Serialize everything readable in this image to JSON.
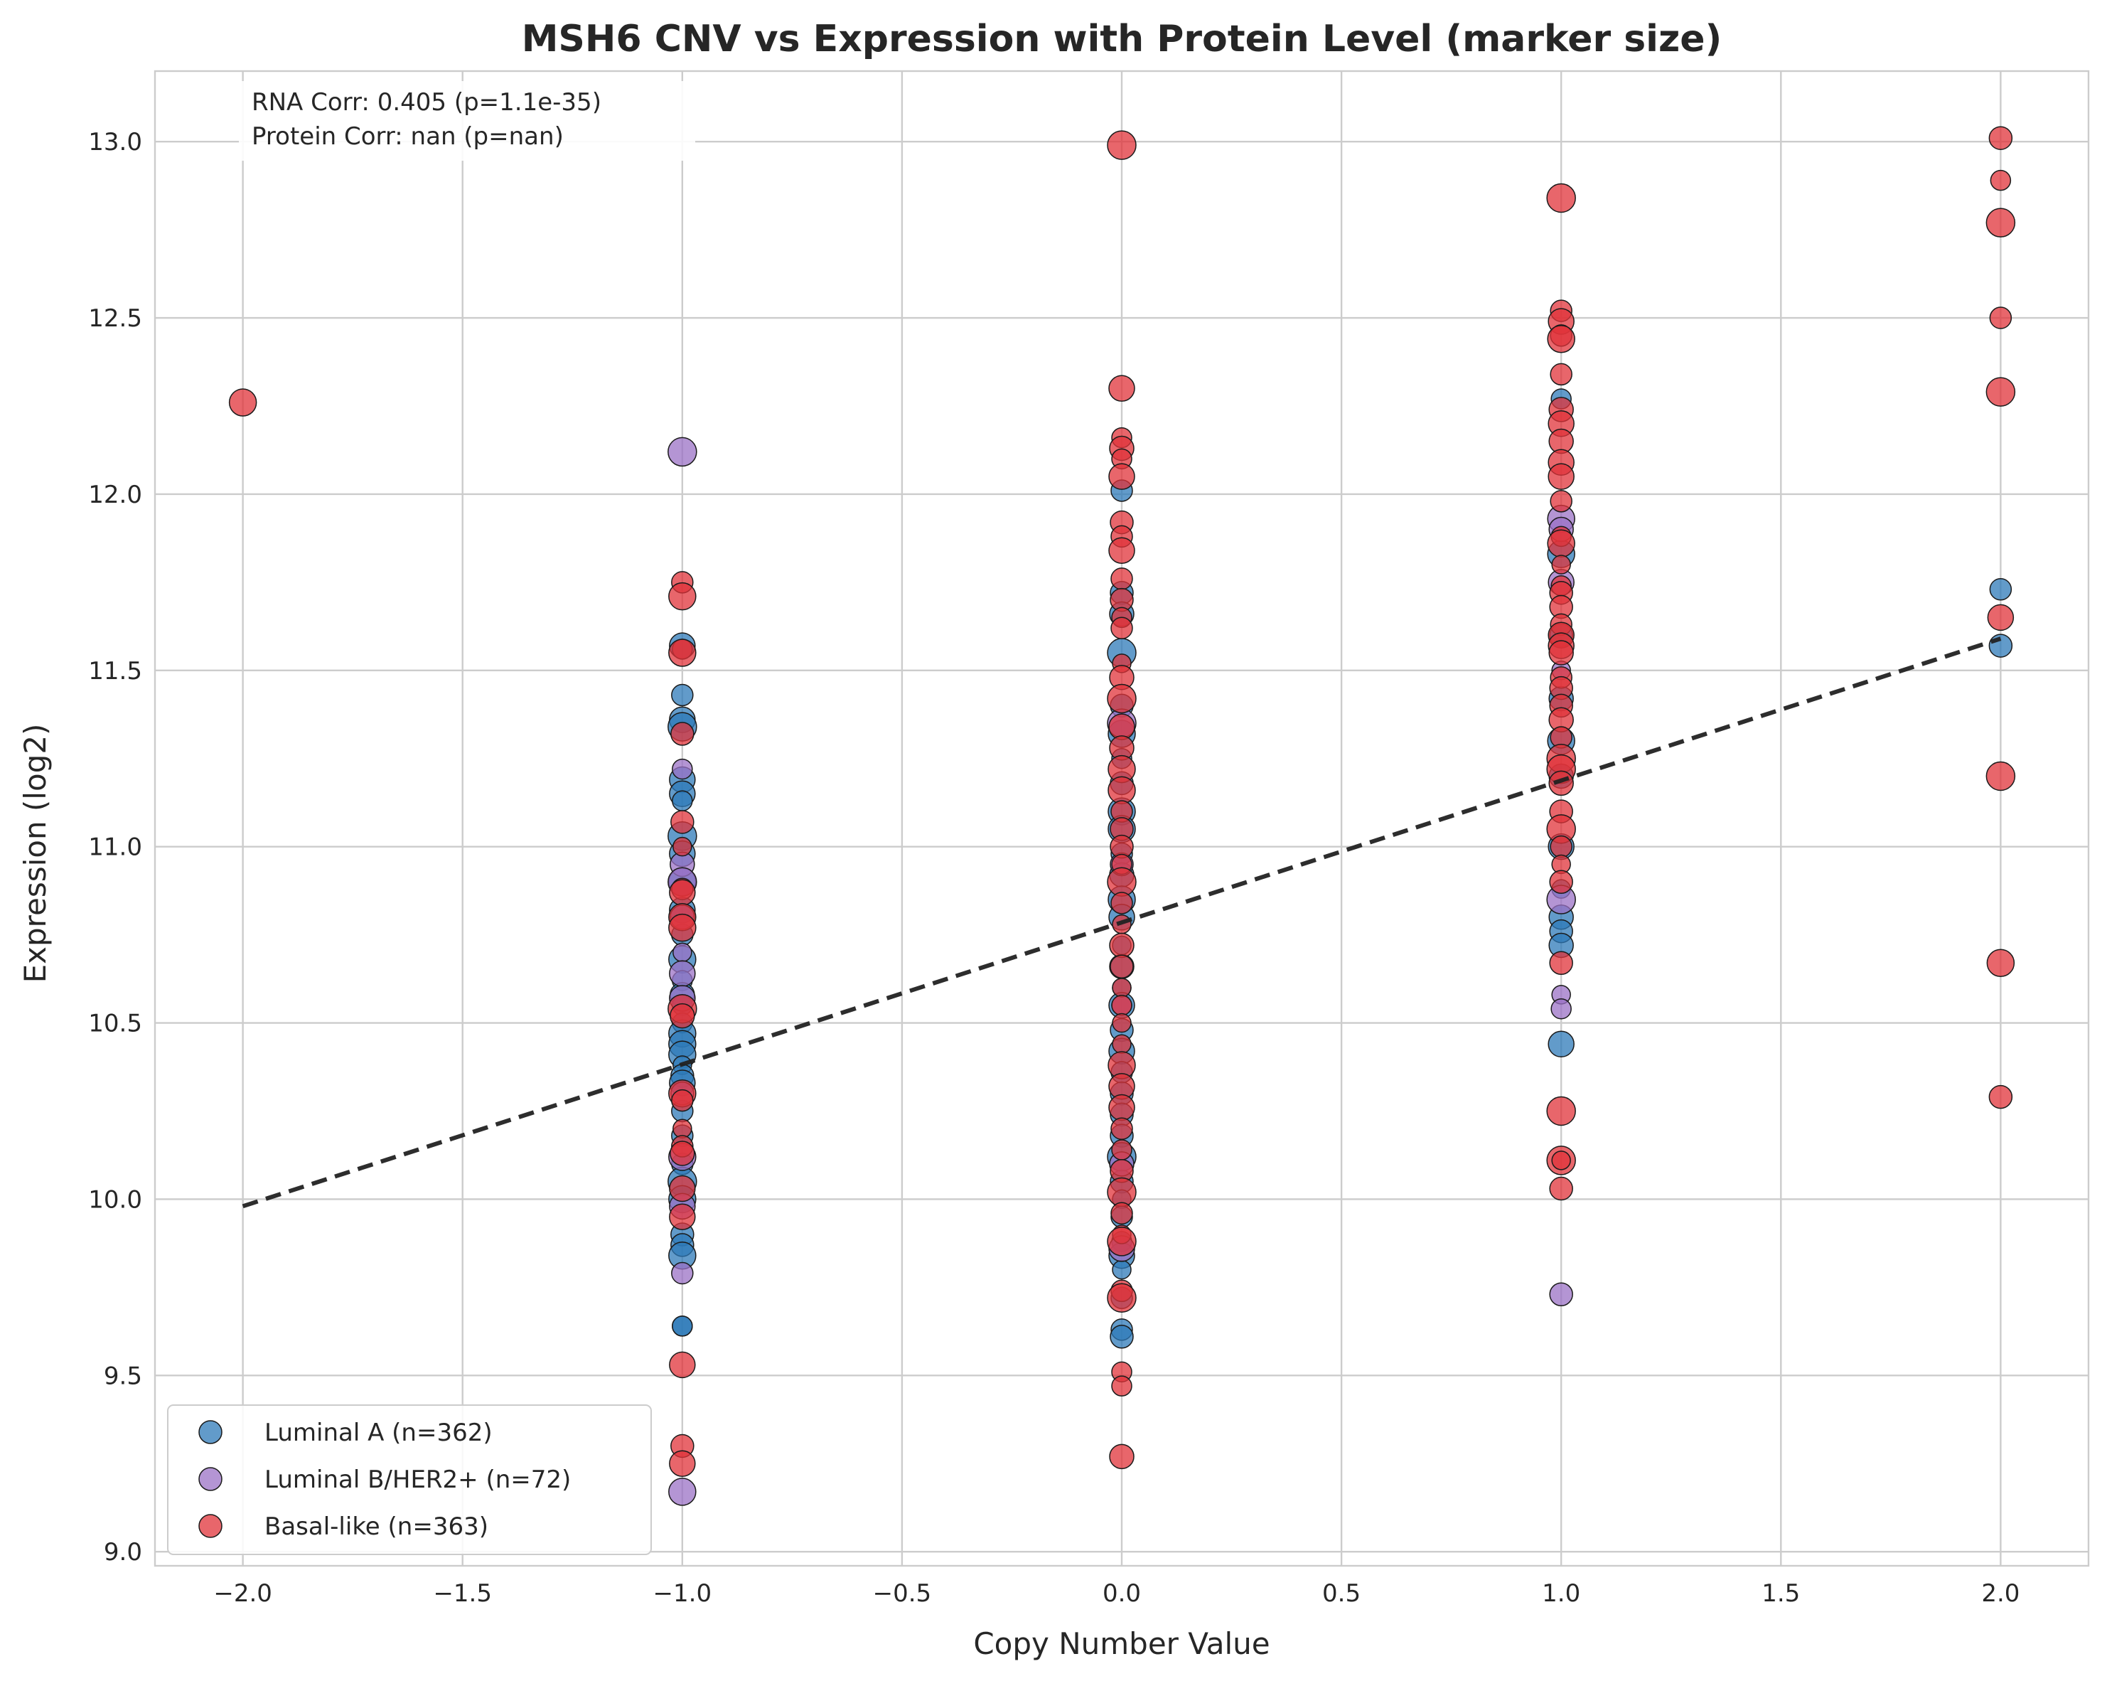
{
  "chart_data": {
    "type": "scatter",
    "title": "MSH6 CNV vs Expression with Protein Level (marker size)",
    "xlabel": "Copy Number Value",
    "ylabel": "Expression (log2)",
    "xlim": [
      -2.2,
      2.2
    ],
    "ylim": [
      8.96,
      13.2
    ],
    "xticks": [
      "−2.0",
      "−1.5",
      "−1.0",
      "−0.5",
      "0.0",
      "0.5",
      "1.0",
      "1.5",
      "2.0"
    ],
    "xtick_values": [
      -2.0,
      -1.5,
      -1.0,
      -0.5,
      0.0,
      0.5,
      1.0,
      1.5,
      2.0
    ],
    "yticks": [
      "9.0",
      "9.5",
      "10.0",
      "10.5",
      "11.0",
      "11.5",
      "12.0",
      "12.5",
      "13.0"
    ],
    "ytick_values": [
      9.0,
      9.5,
      10.0,
      10.5,
      11.0,
      11.5,
      12.0,
      12.5,
      13.0
    ],
    "grid": true,
    "legend_position": "lower-left",
    "annotation": [
      "RNA Corr: 0.405 (p=1.1e-35)",
      "Protein Corr: nan (p=nan)"
    ],
    "trend_line": {
      "x": [
        -2.0,
        2.0
      ],
      "y": [
        9.98,
        11.59
      ],
      "style": "dashed",
      "color": "#222222"
    },
    "series": [
      {
        "name": "Luminal A (n=362)",
        "color": "#2e7ab8",
        "points": [
          [
            -1.0,
            11.57
          ],
          [
            -1.0,
            11.43
          ],
          [
            -1.0,
            11.36
          ],
          [
            -1.0,
            11.34
          ],
          [
            -1.0,
            11.19
          ],
          [
            -1.0,
            11.15
          ],
          [
            -1.0,
            11.13
          ],
          [
            -1.0,
            11.03
          ],
          [
            -1.0,
            10.98
          ],
          [
            -1.0,
            10.9
          ],
          [
            -1.0,
            10.82
          ],
          [
            -1.0,
            10.75
          ],
          [
            -1.0,
            10.68
          ],
          [
            -1.0,
            10.62
          ],
          [
            -1.0,
            10.58
          ],
          [
            -1.0,
            10.55
          ],
          [
            -1.0,
            10.5
          ],
          [
            -1.0,
            10.47
          ],
          [
            -1.0,
            10.44
          ],
          [
            -1.0,
            10.41
          ],
          [
            -1.0,
            10.38
          ],
          [
            -1.0,
            10.35
          ],
          [
            -1.0,
            10.33
          ],
          [
            -1.0,
            10.25
          ],
          [
            -1.0,
            10.18
          ],
          [
            -1.0,
            10.1
          ],
          [
            -1.0,
            10.05
          ],
          [
            -1.0,
            10.0
          ],
          [
            -1.0,
            9.9
          ],
          [
            -1.0,
            9.87
          ],
          [
            -1.0,
            9.84
          ],
          [
            -1.0,
            9.64
          ],
          [
            -1.0,
            9.64
          ],
          [
            0.0,
            12.01
          ],
          [
            0.0,
            11.72
          ],
          [
            0.0,
            11.66
          ],
          [
            0.0,
            11.55
          ],
          [
            0.0,
            11.4
          ],
          [
            0.0,
            11.32
          ],
          [
            0.0,
            11.25
          ],
          [
            0.0,
            11.18
          ],
          [
            0.0,
            11.1
          ],
          [
            0.0,
            11.05
          ],
          [
            0.0,
            10.98
          ],
          [
            0.0,
            10.92
          ],
          [
            0.0,
            10.85
          ],
          [
            0.0,
            10.8
          ],
          [
            0.0,
            10.72
          ],
          [
            0.0,
            10.66
          ],
          [
            0.0,
            10.6
          ],
          [
            0.0,
            10.55
          ],
          [
            0.0,
            10.48
          ],
          [
            0.0,
            10.42
          ],
          [
            0.0,
            10.36
          ],
          [
            0.0,
            10.3
          ],
          [
            0.0,
            10.24
          ],
          [
            0.0,
            10.18
          ],
          [
            0.0,
            10.12
          ],
          [
            0.0,
            10.05
          ],
          [
            0.0,
            10.0
          ],
          [
            0.0,
            9.95
          ],
          [
            0.0,
            9.88
          ],
          [
            0.0,
            9.84
          ],
          [
            0.0,
            9.8
          ],
          [
            0.0,
            9.72
          ],
          [
            0.0,
            9.63
          ],
          [
            0.0,
            9.61
          ],
          [
            1.0,
            12.27
          ],
          [
            1.0,
            11.83
          ],
          [
            1.0,
            11.6
          ],
          [
            1.0,
            11.42
          ],
          [
            1.0,
            11.3
          ],
          [
            1.0,
            11.2
          ],
          [
            1.0,
            11.0
          ],
          [
            1.0,
            10.88
          ],
          [
            1.0,
            10.8
          ],
          [
            1.0,
            10.76
          ],
          [
            1.0,
            10.72
          ],
          [
            1.0,
            10.44
          ],
          [
            2.0,
            11.73
          ],
          [
            2.0,
            11.57
          ]
        ]
      },
      {
        "name": "Luminal B/HER2+ (n=72)",
        "color": "#9b72c6",
        "points": [
          [
            -1.0,
            12.12
          ],
          [
            -1.0,
            11.22
          ],
          [
            -1.0,
            10.95
          ],
          [
            -1.0,
            10.9
          ],
          [
            -1.0,
            10.8
          ],
          [
            -1.0,
            10.7
          ],
          [
            -1.0,
            10.64
          ],
          [
            -1.0,
            10.57
          ],
          [
            -1.0,
            10.3
          ],
          [
            -1.0,
            10.12
          ],
          [
            -1.0,
            9.98
          ],
          [
            -1.0,
            9.79
          ],
          [
            -1.0,
            9.17
          ],
          [
            0.0,
            11.35
          ],
          [
            0.0,
            10.95
          ],
          [
            0.0,
            10.55
          ],
          [
            0.0,
            10.1
          ],
          [
            0.0,
            9.86
          ],
          [
            1.0,
            11.93
          ],
          [
            1.0,
            11.9
          ],
          [
            1.0,
            11.75
          ],
          [
            1.0,
            11.5
          ],
          [
            1.0,
            10.85
          ],
          [
            1.0,
            10.58
          ],
          [
            1.0,
            10.54
          ],
          [
            1.0,
            9.73
          ]
        ]
      },
      {
        "name": "Basal-like (n=363)",
        "color": "#e0333a",
        "points": [
          [
            -2.0,
            12.26
          ],
          [
            -1.0,
            11.75
          ],
          [
            -1.0,
            11.71
          ],
          [
            -1.0,
            11.56
          ],
          [
            -1.0,
            11.55
          ],
          [
            -1.0,
            11.32
          ],
          [
            -1.0,
            11.07
          ],
          [
            -1.0,
            11.0
          ],
          [
            -1.0,
            10.88
          ],
          [
            -1.0,
            10.87
          ],
          [
            -1.0,
            10.8
          ],
          [
            -1.0,
            10.77
          ],
          [
            -1.0,
            10.54
          ],
          [
            -1.0,
            10.52
          ],
          [
            -1.0,
            10.3
          ],
          [
            -1.0,
            10.28
          ],
          [
            -1.0,
            10.2
          ],
          [
            -1.0,
            10.15
          ],
          [
            -1.0,
            10.13
          ],
          [
            -1.0,
            10.03
          ],
          [
            -1.0,
            9.95
          ],
          [
            -1.0,
            9.53
          ],
          [
            -1.0,
            9.3
          ],
          [
            -1.0,
            9.25
          ],
          [
            0.0,
            12.99
          ],
          [
            0.0,
            12.3
          ],
          [
            0.0,
            12.16
          ],
          [
            0.0,
            12.13
          ],
          [
            0.0,
            12.1
          ],
          [
            0.0,
            12.05
          ],
          [
            0.0,
            11.92
          ],
          [
            0.0,
            11.88
          ],
          [
            0.0,
            11.84
          ],
          [
            0.0,
            11.76
          ],
          [
            0.0,
            11.7
          ],
          [
            0.0,
            11.65
          ],
          [
            0.0,
            11.62
          ],
          [
            0.0,
            11.52
          ],
          [
            0.0,
            11.48
          ],
          [
            0.0,
            11.42
          ],
          [
            0.0,
            11.34
          ],
          [
            0.0,
            11.28
          ],
          [
            0.0,
            11.22
          ],
          [
            0.0,
            11.16
          ],
          [
            0.0,
            11.1
          ],
          [
            0.0,
            11.05
          ],
          [
            0.0,
            11.0
          ],
          [
            0.0,
            10.95
          ],
          [
            0.0,
            10.9
          ],
          [
            0.0,
            10.84
          ],
          [
            0.0,
            10.78
          ],
          [
            0.0,
            10.72
          ],
          [
            0.0,
            10.66
          ],
          [
            0.0,
            10.6
          ],
          [
            0.0,
            10.55
          ],
          [
            0.0,
            10.5
          ],
          [
            0.0,
            10.44
          ],
          [
            0.0,
            10.38
          ],
          [
            0.0,
            10.32
          ],
          [
            0.0,
            10.26
          ],
          [
            0.0,
            10.2
          ],
          [
            0.0,
            10.14
          ],
          [
            0.0,
            10.08
          ],
          [
            0.0,
            10.02
          ],
          [
            0.0,
            9.96
          ],
          [
            0.0,
            9.9
          ],
          [
            0.0,
            9.88
          ],
          [
            0.0,
            9.74
          ],
          [
            0.0,
            9.72
          ],
          [
            0.0,
            9.51
          ],
          [
            0.0,
            9.47
          ],
          [
            0.0,
            9.27
          ],
          [
            1.0,
            12.84
          ],
          [
            1.0,
            12.52
          ],
          [
            1.0,
            12.49
          ],
          [
            1.0,
            12.45
          ],
          [
            1.0,
            12.44
          ],
          [
            1.0,
            12.34
          ],
          [
            1.0,
            12.24
          ],
          [
            1.0,
            12.2
          ],
          [
            1.0,
            12.15
          ],
          [
            1.0,
            12.09
          ],
          [
            1.0,
            12.05
          ],
          [
            1.0,
            11.98
          ],
          [
            1.0,
            11.88
          ],
          [
            1.0,
            11.86
          ],
          [
            1.0,
            11.8
          ],
          [
            1.0,
            11.74
          ],
          [
            1.0,
            11.72
          ],
          [
            1.0,
            11.68
          ],
          [
            1.0,
            11.63
          ],
          [
            1.0,
            11.6
          ],
          [
            1.0,
            11.57
          ],
          [
            1.0,
            11.55
          ],
          [
            1.0,
            11.48
          ],
          [
            1.0,
            11.45
          ],
          [
            1.0,
            11.4
          ],
          [
            1.0,
            11.36
          ],
          [
            1.0,
            11.31
          ],
          [
            1.0,
            11.25
          ],
          [
            1.0,
            11.22
          ],
          [
            1.0,
            11.18
          ],
          [
            1.0,
            11.1
          ],
          [
            1.0,
            11.05
          ],
          [
            1.0,
            11.0
          ],
          [
            1.0,
            10.95
          ],
          [
            1.0,
            10.9
          ],
          [
            1.0,
            10.67
          ],
          [
            1.0,
            10.25
          ],
          [
            1.0,
            10.11
          ],
          [
            1.0,
            10.11
          ],
          [
            1.0,
            10.03
          ],
          [
            2.0,
            13.01
          ],
          [
            2.0,
            12.89
          ],
          [
            2.0,
            12.77
          ],
          [
            2.0,
            12.5
          ],
          [
            2.0,
            12.29
          ],
          [
            2.0,
            11.65
          ],
          [
            2.0,
            11.2
          ],
          [
            2.0,
            10.67
          ],
          [
            2.0,
            10.29
          ]
        ]
      }
    ]
  }
}
